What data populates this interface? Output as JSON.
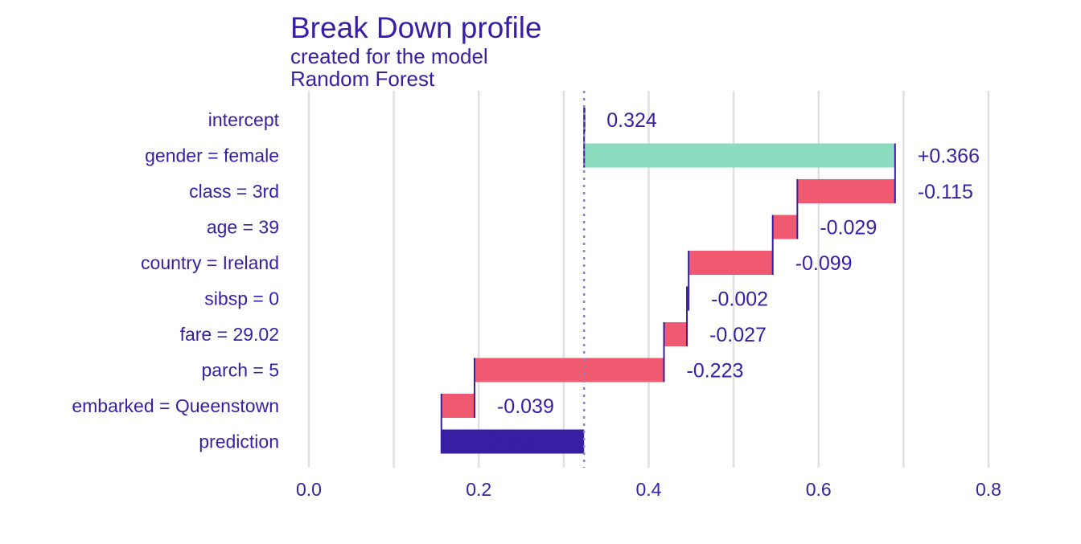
{
  "chart_data": {
    "type": "bar",
    "title": "Break Down profile",
    "subtitle_line1": "created for the  model",
    "subtitle_line2": "Random Forest",
    "xlabel": "",
    "ylabel": "",
    "xlim": [
      0.0,
      0.8
    ],
    "x_ticks": [
      "0.0",
      "0.2",
      "0.4",
      "0.6",
      "0.8"
    ],
    "x_tick_values": [
      0.0,
      0.2,
      0.4,
      0.6,
      0.8
    ],
    "grid": true,
    "baseline": 0.324,
    "colors": {
      "text": "#371ea3",
      "positive": "#8bdcbe",
      "negative": "#f05a71",
      "prediction": "#371ea3",
      "grid": "#e0e0e0"
    },
    "variables": [
      {
        "label": "intercept",
        "start": 0.324,
        "end": 0.324,
        "value_label": "0.324",
        "kind": "intercept"
      },
      {
        "label": "gender = female",
        "start": 0.324,
        "end": 0.69,
        "value_label": "+0.366",
        "kind": "positive"
      },
      {
        "label": "class = 3rd",
        "start": 0.69,
        "end": 0.575,
        "value_label": "-0.115",
        "kind": "negative"
      },
      {
        "label": "age = 39",
        "start": 0.575,
        "end": 0.546,
        "value_label": "-0.029",
        "kind": "negative"
      },
      {
        "label": "country = Ireland",
        "start": 0.546,
        "end": 0.447,
        "value_label": "-0.099",
        "kind": "negative"
      },
      {
        "label": "sibsp = 0",
        "start": 0.447,
        "end": 0.445,
        "value_label": "-0.002",
        "kind": "negative"
      },
      {
        "label": "fare = 29.02",
        "start": 0.445,
        "end": 0.418,
        "value_label": "-0.027",
        "kind": "negative"
      },
      {
        "label": "parch = 5",
        "start": 0.418,
        "end": 0.195,
        "value_label": "-0.223",
        "kind": "negative"
      },
      {
        "label": "embarked = Queenstown",
        "start": 0.195,
        "end": 0.156,
        "value_label": "-0.039",
        "kind": "negative"
      },
      {
        "label": "prediction",
        "start": 0.324,
        "end": 0.156,
        "value_label": "0.156",
        "kind": "prediction"
      }
    ]
  }
}
